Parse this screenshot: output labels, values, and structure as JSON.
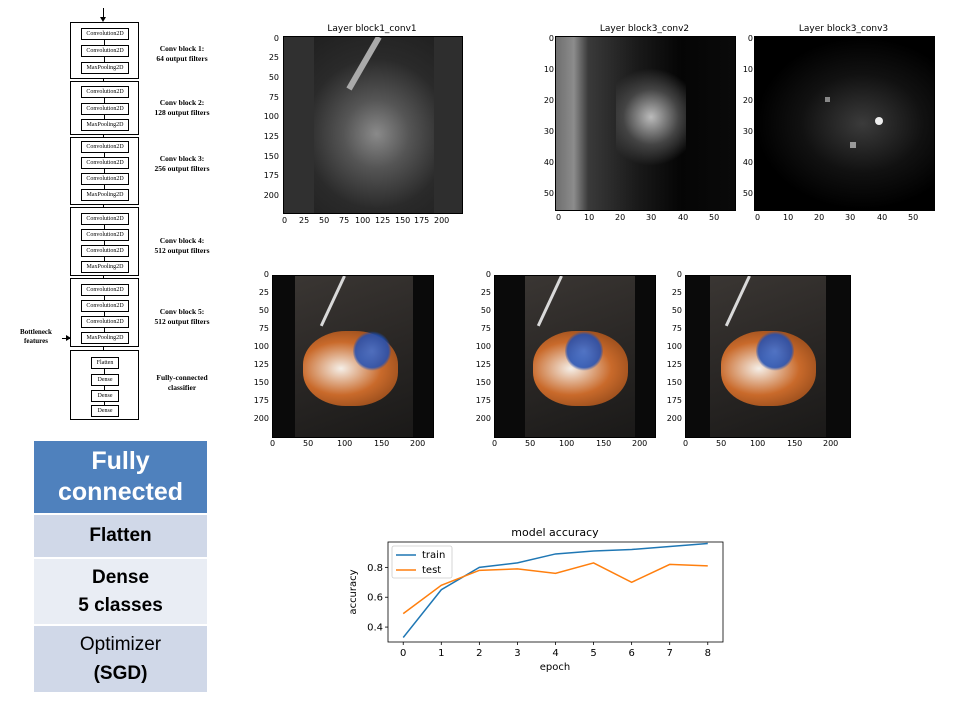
{
  "architecture": {
    "blocks": [
      {
        "layers": [
          "Convolution2D",
          "Convolution2D",
          "MaxPooling2D"
        ],
        "label_line1": "Conv block 1:",
        "label_line2": "64 output filters"
      },
      {
        "layers": [
          "Convolution2D",
          "Convolution2D",
          "MaxPooling2D"
        ],
        "label_line1": "Conv block 2:",
        "label_line2": "128 output filters"
      },
      {
        "layers": [
          "Convolution2D",
          "Convolution2D",
          "Convolution2D",
          "MaxPooling2D"
        ],
        "label_line1": "Conv block 3:",
        "label_line2": "256 output filters"
      },
      {
        "layers": [
          "Convolution2D",
          "Convolution2D",
          "Convolution2D",
          "MaxPooling2D"
        ],
        "label_line1": "Conv block 4:",
        "label_line2": "512 output filters"
      },
      {
        "layers": [
          "Convolution2D",
          "Convolution2D",
          "Convolution2D",
          "MaxPooling2D"
        ],
        "label_line1": "Conv block 5:",
        "label_line2": "512 output filters"
      }
    ],
    "classifier": {
      "layers": [
        "Flatten",
        "Dense",
        "Dense",
        "Dense"
      ],
      "label_line1": "Fully-connected",
      "label_line2": "classifier"
    },
    "bottleneck_line1": "Bottleneck",
    "bottleneck_line2": "features"
  },
  "fc_stack": {
    "header_line1": "Fully",
    "header_line2": "connected",
    "row1": "Flatten",
    "row2_line1": "Dense",
    "row2_line2": "5 classes",
    "row3_line1": "Optimizer",
    "row3_line2": "(SGD)",
    "colors": {
      "header": "#4f81bd",
      "row_dark": "#d0d8e8",
      "row_light": "#e9edf4"
    }
  },
  "feature_maps": [
    {
      "title": "Layer block1_conv1",
      "xticks": [
        "0",
        "25",
        "50",
        "75",
        "100",
        "125",
        "150",
        "175",
        "200"
      ],
      "yticks": [
        "0",
        "25",
        "50",
        "75",
        "100",
        "125",
        "150",
        "175",
        "200"
      ]
    },
    {
      "title": "Layer block3_conv2",
      "xticks": [
        "0",
        "10",
        "20",
        "30",
        "40",
        "50"
      ],
      "yticks": [
        "0",
        "10",
        "20",
        "30",
        "40",
        "50"
      ]
    },
    {
      "title": "Layer block3_conv3",
      "xticks": [
        "0",
        "10",
        "20",
        "30",
        "40",
        "50"
      ],
      "yticks": [
        "0",
        "10",
        "20",
        "30",
        "40",
        "50"
      ]
    }
  ],
  "augmented_images": [
    {
      "xticks": [
        "0",
        "50",
        "100",
        "150",
        "200"
      ],
      "yticks": [
        "0",
        "25",
        "50",
        "75",
        "100",
        "125",
        "150",
        "175",
        "200"
      ]
    },
    {
      "xticks": [
        "0",
        "50",
        "100",
        "150",
        "200"
      ],
      "yticks": [
        "0",
        "25",
        "50",
        "75",
        "100",
        "125",
        "150",
        "175",
        "200"
      ]
    },
    {
      "xticks": [
        "0",
        "50",
        "100",
        "150",
        "200"
      ],
      "yticks": [
        "0",
        "25",
        "50",
        "75",
        "100",
        "125",
        "150",
        "175",
        "200"
      ]
    }
  ],
  "chart_data": {
    "type": "line",
    "title": "model accuracy",
    "xlabel": "epoch",
    "ylabel": "accuracy",
    "x": [
      0,
      1,
      2,
      3,
      4,
      5,
      6,
      7,
      8
    ],
    "xlim": [
      -0.4,
      8.4
    ],
    "ylim": [
      0.3,
      0.97
    ],
    "yticks": [
      0.4,
      0.6,
      0.8
    ],
    "legend_position": "top-left",
    "grid": false,
    "series": [
      {
        "name": "train",
        "color": "#1f77b4",
        "values": [
          0.33,
          0.65,
          0.8,
          0.83,
          0.89,
          0.91,
          0.92,
          0.94,
          0.96
        ]
      },
      {
        "name": "test",
        "color": "#ff7f0e",
        "values": [
          0.49,
          0.68,
          0.78,
          0.79,
          0.76,
          0.83,
          0.7,
          0.82,
          0.81
        ]
      }
    ]
  }
}
